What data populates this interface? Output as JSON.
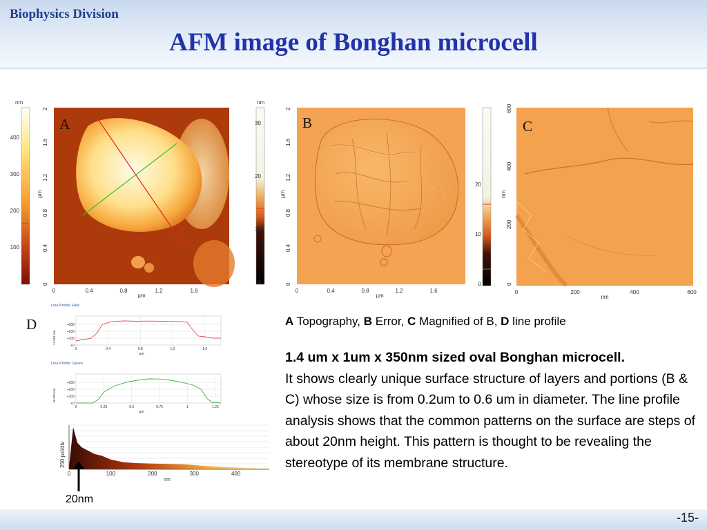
{
  "header": {
    "division": "Biophysics Division",
    "title": "AFM image of Bonghan microcell"
  },
  "panels": {
    "a": {
      "label": "A",
      "unit": "nm",
      "axis_unit": "µm",
      "colorbar_ticks": [
        "400",
        "300",
        "200",
        "100"
      ],
      "x_ticks": [
        "0",
        "0.4",
        "0.8",
        "1.2",
        "1.6"
      ],
      "y_ticks": [
        "2",
        "1.6",
        "1.2",
        "0.8",
        "0.4",
        "0"
      ],
      "y_label": "µm"
    },
    "b": {
      "label": "B",
      "unit": "nm",
      "axis_unit": "µm",
      "colorbar_ticks": [
        "30",
        "20",
        "10",
        "0"
      ],
      "x_ticks": [
        "0",
        "0.4",
        "0.8",
        "1.2",
        "1.6"
      ],
      "y_ticks": [
        "2",
        "1.6",
        "1.2",
        "0.8",
        "0.4",
        "0"
      ],
      "y_label": "µm"
    },
    "c": {
      "label": "C",
      "unit": "nm",
      "axis_unit": "nm",
      "colorbar_ticks": [
        "20",
        "10",
        "0"
      ],
      "x_ticks": [
        "0",
        "200",
        "400",
        "600"
      ],
      "y_ticks": [
        "600",
        "400",
        "200",
        "0"
      ],
      "y_label": "nm"
    },
    "d": {
      "label": "D",
      "annotation": "20nm"
    }
  },
  "chart_data": [
    {
      "type": "line",
      "title": "Line Profile: Red",
      "xlabel": "µm",
      "ylabel": "17.661 nm",
      "x_ticks": [
        "0",
        "0.4",
        "0.8",
        "1.2",
        "1.6"
      ],
      "y_ticks": [
        "+300",
        "+200",
        "+100",
        "+0"
      ],
      "color": "#e05050",
      "ylim": [
        0,
        420
      ],
      "xlim": [
        0,
        1.8
      ],
      "x": [
        0,
        0.08,
        0.18,
        0.26,
        0.33,
        0.45,
        0.6,
        0.75,
        0.9,
        1.05,
        1.2,
        1.3,
        1.38,
        1.45,
        1.52,
        1.6,
        1.7,
        1.8
      ],
      "values": [
        60,
        80,
        95,
        170,
        300,
        340,
        350,
        345,
        348,
        345,
        342,
        340,
        330,
        220,
        130,
        120,
        100,
        100
      ]
    },
    {
      "type": "line",
      "title": "Line Profile: Green",
      "xlabel": "µm",
      "ylabel": "18.329 nm",
      "x_ticks": [
        "0",
        "0.25",
        "0.5",
        "0.75",
        "1",
        "1.25"
      ],
      "y_ticks": [
        "+300",
        "+200",
        "+100",
        "+0"
      ],
      "color": "#40b040",
      "ylim": [
        0,
        420
      ],
      "xlim": [
        0,
        1.3
      ],
      "x": [
        0,
        0.08,
        0.15,
        0.2,
        0.25,
        0.35,
        0.45,
        0.55,
        0.65,
        0.75,
        0.85,
        0.95,
        1.05,
        1.12,
        1.18,
        1.22,
        1.3
      ],
      "values": [
        0,
        0,
        0,
        50,
        160,
        250,
        300,
        330,
        350,
        348,
        330,
        300,
        260,
        200,
        60,
        10,
        0
      ]
    },
    {
      "type": "area",
      "title": "",
      "xlabel": "nm",
      "ylabel": "250 pxl/div",
      "x_ticks": [
        "0",
        "100",
        "200",
        "300",
        "400"
      ],
      "xlim": [
        0,
        480
      ],
      "ylim": [
        0,
        1
      ],
      "x": [
        0,
        10,
        20,
        30,
        40,
        60,
        80,
        100,
        130,
        160,
        200,
        240,
        280,
        320,
        360,
        400,
        440,
        480
      ],
      "values": [
        0.05,
        0.95,
        0.6,
        0.5,
        0.45,
        0.35,
        0.3,
        0.22,
        0.16,
        0.14,
        0.13,
        0.12,
        0.11,
        0.08,
        0.06,
        0.04,
        0.03,
        0.02
      ]
    }
  ],
  "caption": {
    "parts": [
      {
        "letter": "A",
        "text": " Topography, "
      },
      {
        "letter": "B",
        "text": " Error, "
      },
      {
        "letter": "C",
        "text": " Magnified of B, "
      },
      {
        "letter": "D",
        "text": " line profile"
      }
    ]
  },
  "description": {
    "lead": "1.4 um x 1um x 350nm sized oval Bonghan microcell.",
    "body": "It shows clearly unique surface structure of layers and portions (B & C) whose size is from 0.2um to 0.6 um in diameter. The line profile analysis shows that the common patterns on the surface are steps of about 20nm height. This pattern is thought to be revealing the stereotype of its membrane structure."
  },
  "footer": {
    "page": "-15-"
  }
}
